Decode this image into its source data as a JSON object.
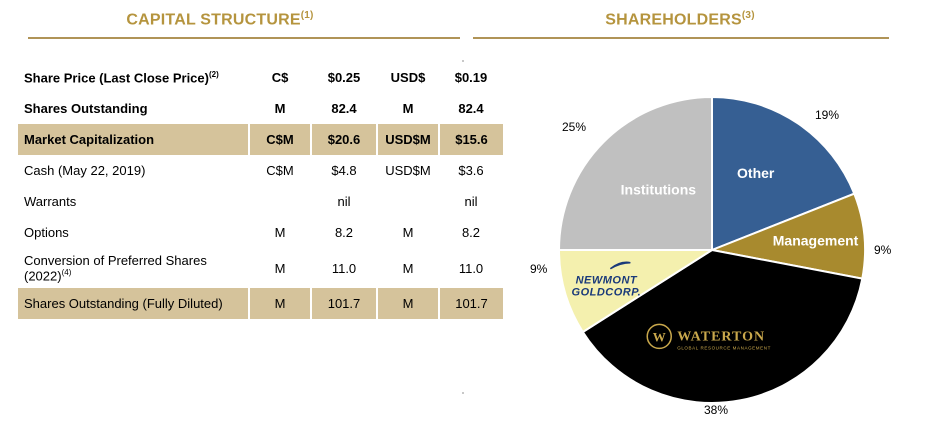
{
  "capital_structure": {
    "title": "CAPITAL STRUCTURE",
    "title_sup": "(1)",
    "rows": [
      {
        "label": "Share Price (Last Close Price)",
        "sup": "(2)",
        "c1": "C$",
        "c2": "$0.25",
        "c3": "USD$",
        "c4": "$0.19",
        "style": "bold"
      },
      {
        "label": "Shares Outstanding",
        "sup": "",
        "c1": "M",
        "c2": "82.4",
        "c3": "M",
        "c4": "82.4",
        "style": "bold"
      },
      {
        "label": "Market Capitalization",
        "sup": "",
        "c1": "C$M",
        "c2": "$20.6",
        "c3": "USD$M",
        "c4": "$15.6",
        "style": "bold-highlight"
      },
      {
        "label": "Cash (May 22, 2019)",
        "sup": "",
        "c1": "C$M",
        "c2": "$4.8",
        "c3": "USD$M",
        "c4": "$3.6",
        "style": "normal"
      },
      {
        "label": "Warrants",
        "sup": "",
        "c1": "",
        "c2": "nil",
        "c3": "",
        "c4": "nil",
        "style": "normal"
      },
      {
        "label": "Options",
        "sup": "",
        "c1": "M",
        "c2": "8.2",
        "c3": "M",
        "c4": "8.2",
        "style": "normal"
      },
      {
        "label": "Conversion of Preferred Shares (2022)",
        "sup": "(4)",
        "c1": "M",
        "c2": "11.0",
        "c3": "M",
        "c4": "11.0",
        "style": "tall"
      },
      {
        "label": "Shares Outstanding (Fully Diluted)",
        "sup": "",
        "c1": "M",
        "c2": "101.7",
        "c3": "M",
        "c4": "101.7",
        "style": "highlight"
      }
    ]
  },
  "shareholders": {
    "title": "SHAREHOLDERS",
    "title_sup": "(3)"
  },
  "colors": {
    "title_gold": "#b5943e",
    "rule_gold": "#b09457",
    "highlight": "#d5c39b"
  },
  "chart_data": {
    "type": "pie",
    "title": "",
    "slices": [
      {
        "name": "Other",
        "value": 19,
        "label": "19%",
        "color": "#365f93",
        "text_color": "#ffffff"
      },
      {
        "name": "Management",
        "value": 9,
        "label": "9%",
        "color": "#a88a2e",
        "text_color": "#ffffff"
      },
      {
        "name": "Waterton",
        "value": 38,
        "label": "38%",
        "color": "#000000",
        "text_color": "#c9a84c",
        "logo": "waterton-logo"
      },
      {
        "name": "Newmont Goldcorp",
        "value": 9,
        "label": "9%",
        "color": "#f4f0ae",
        "text_color": "#1a3a7a",
        "logo": "newmont-goldcorp-logo"
      },
      {
        "name": "Institutions",
        "value": 25,
        "label": "25%",
        "color": "#c0c0c0",
        "text_color": "#ffffff"
      }
    ],
    "slice_texts": {
      "other": "Other",
      "management": "Management",
      "institutions": "Institutions",
      "newmont_line1": "NEWMONT",
      "newmont_line2": "GOLDCORP.",
      "waterton_name": "WATERTON",
      "waterton_tagline": "GLOBAL RESOURCE MANAGEMENT",
      "waterton_mark": "W"
    }
  }
}
